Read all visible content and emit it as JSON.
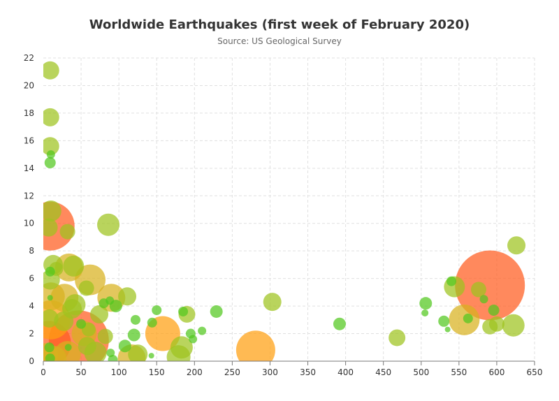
{
  "chart_data": {
    "type": "scatter",
    "title": "Worldwide Earthquakes (first week of February 2020)",
    "subtitle": "Source: US Geological Survey",
    "xlabel": "",
    "ylabel": "",
    "xlim": [
      0,
      650
    ],
    "ylim": [
      0,
      22
    ],
    "x_ticks": [
      0,
      50,
      100,
      150,
      200,
      250,
      300,
      350,
      400,
      450,
      500,
      550,
      600,
      650
    ],
    "y_ticks": [
      0,
      2,
      4,
      6,
      8,
      10,
      12,
      14,
      16,
      18,
      20,
      22
    ],
    "grid": "dashed, both axes",
    "colors": {
      "small": "#52c81e",
      "medium": "#9ec41e",
      "large": "#d8b21e",
      "xlarge": "#ffa011",
      "huge": "#ff5b1e"
    },
    "points": [
      {
        "x": 591,
        "y": 5.5,
        "r": 50,
        "c": "huge"
      },
      {
        "x": 47,
        "y": 1.5,
        "r": 43,
        "c": "huge"
      },
      {
        "x": 9,
        "y": 9.8,
        "r": 35,
        "c": "huge"
      },
      {
        "x": 7,
        "y": 1.3,
        "r": 32,
        "c": "huge"
      },
      {
        "x": 10,
        "y": 3.0,
        "r": 28,
        "c": "xlarge"
      },
      {
        "x": 281,
        "y": 0.8,
        "r": 28,
        "c": "xlarge"
      },
      {
        "x": 158,
        "y": 2.0,
        "r": 25,
        "c": "xlarge"
      },
      {
        "x": 557,
        "y": 3.0,
        "r": 22,
        "c": "large"
      },
      {
        "x": 62,
        "y": 5.9,
        "r": 22,
        "c": "large"
      },
      {
        "x": 28,
        "y": 4.6,
        "r": 20,
        "c": "large"
      },
      {
        "x": 10,
        "y": 4.7,
        "r": 20,
        "c": "large"
      },
      {
        "x": 34,
        "y": 6.8,
        "r": 20,
        "c": "large"
      },
      {
        "x": 117,
        "y": 0.2,
        "r": 20,
        "c": "large"
      },
      {
        "x": 90,
        "y": 4.6,
        "r": 20,
        "c": "large"
      },
      {
        "x": 32,
        "y": 0.5,
        "r": 19,
        "c": "large"
      },
      {
        "x": 54,
        "y": 2.0,
        "r": 18,
        "c": "large"
      },
      {
        "x": 3,
        "y": 0.4,
        "r": 18,
        "c": "large"
      },
      {
        "x": 14,
        "y": 0.2,
        "r": 18,
        "c": "large"
      },
      {
        "x": 179,
        "y": 0.3,
        "r": 17,
        "c": "medium"
      },
      {
        "x": 183,
        "y": 1.0,
        "r": 16,
        "c": "medium"
      },
      {
        "x": 69,
        "y": 0.6,
        "r": 16,
        "c": "medium"
      },
      {
        "x": 10,
        "y": 10.9,
        "r": 15,
        "c": "medium"
      },
      {
        "x": 86,
        "y": 9.9,
        "r": 16,
        "c": "medium"
      },
      {
        "x": 40,
        "y": 6.9,
        "r": 15,
        "c": "medium"
      },
      {
        "x": 42,
        "y": 4.1,
        "r": 15,
        "c": "medium"
      },
      {
        "x": 13,
        "y": 7.0,
        "r": 14,
        "c": "medium"
      },
      {
        "x": 9,
        "y": 5.9,
        "r": 14,
        "c": "medium"
      },
      {
        "x": 8,
        "y": 3.1,
        "r": 13,
        "c": "medium"
      },
      {
        "x": 622,
        "y": 2.6,
        "r": 16,
        "c": "medium"
      },
      {
        "x": 544,
        "y": 5.4,
        "r": 15,
        "c": "medium"
      },
      {
        "x": 27,
        "y": 2.9,
        "r": 14,
        "c": "medium"
      },
      {
        "x": 74,
        "y": 3.4,
        "r": 13,
        "c": "medium"
      },
      {
        "x": 38,
        "y": 3.8,
        "r": 14,
        "c": "medium"
      },
      {
        "x": 125,
        "y": 0.5,
        "r": 14,
        "c": "medium"
      },
      {
        "x": 58,
        "y": 1.1,
        "r": 13,
        "c": "medium"
      },
      {
        "x": 9,
        "y": 21.1,
        "r": 13,
        "c": "medium"
      },
      {
        "x": 9,
        "y": 17.7,
        "r": 13,
        "c": "medium"
      },
      {
        "x": 9,
        "y": 15.6,
        "r": 13,
        "c": "medium"
      },
      {
        "x": 7,
        "y": 9.7,
        "r": 13,
        "c": "medium"
      },
      {
        "x": 32,
        "y": 9.4,
        "r": 11,
        "c": "medium"
      },
      {
        "x": 111,
        "y": 4.7,
        "r": 13,
        "c": "medium"
      },
      {
        "x": 303,
        "y": 4.3,
        "r": 13,
        "c": "medium"
      },
      {
        "x": 626,
        "y": 8.4,
        "r": 13,
        "c": "medium"
      },
      {
        "x": 190,
        "y": 3.4,
        "r": 12,
        "c": "medium"
      },
      {
        "x": 468,
        "y": 1.7,
        "r": 12,
        "c": "medium"
      },
      {
        "x": 576,
        "y": 5.2,
        "r": 11,
        "c": "medium"
      },
      {
        "x": 600,
        "y": 2.7,
        "r": 11,
        "c": "medium"
      },
      {
        "x": 591,
        "y": 2.5,
        "r": 11,
        "c": "medium"
      },
      {
        "x": 57,
        "y": 5.3,
        "r": 11,
        "c": "medium"
      },
      {
        "x": 82,
        "y": 1.8,
        "r": 11,
        "c": "medium"
      },
      {
        "x": 17,
        "y": 6.7,
        "r": 10,
        "c": "medium"
      },
      {
        "x": 60,
        "y": 2.3,
        "r": 10,
        "c": "medium"
      },
      {
        "x": 229,
        "y": 3.6,
        "r": 9,
        "c": "small"
      },
      {
        "x": 392,
        "y": 2.7,
        "r": 9,
        "c": "small"
      },
      {
        "x": 506,
        "y": 4.2,
        "r": 9,
        "c": "small"
      },
      {
        "x": 530,
        "y": 2.9,
        "r": 8,
        "c": "small"
      },
      {
        "x": 596,
        "y": 3.7,
        "r": 8,
        "c": "small"
      },
      {
        "x": 540,
        "y": 5.8,
        "r": 7,
        "c": "small"
      },
      {
        "x": 562,
        "y": 3.1,
        "r": 7,
        "c": "small"
      },
      {
        "x": 108,
        "y": 1.1,
        "r": 9,
        "c": "small"
      },
      {
        "x": 120,
        "y": 1.9,
        "r": 9,
        "c": "small"
      },
      {
        "x": 96,
        "y": 4.0,
        "r": 9,
        "c": "small"
      },
      {
        "x": 9,
        "y": 14.4,
        "r": 8,
        "c": "small"
      },
      {
        "x": 10,
        "y": 15.0,
        "r": 6,
        "c": "small"
      },
      {
        "x": 9,
        "y": 6.5,
        "r": 7,
        "c": "small"
      },
      {
        "x": 8,
        "y": 1.0,
        "r": 7,
        "c": "small"
      },
      {
        "x": 9,
        "y": 0.2,
        "r": 7,
        "c": "small"
      },
      {
        "x": 150,
        "y": 3.7,
        "r": 7,
        "c": "small"
      },
      {
        "x": 185,
        "y": 3.6,
        "r": 7,
        "c": "small"
      },
      {
        "x": 195,
        "y": 2.0,
        "r": 7,
        "c": "small"
      },
      {
        "x": 144,
        "y": 2.8,
        "r": 7,
        "c": "small"
      },
      {
        "x": 122,
        "y": 3.0,
        "r": 7,
        "c": "small"
      },
      {
        "x": 92,
        "y": 0.1,
        "r": 7,
        "c": "small"
      },
      {
        "x": 80,
        "y": 4.2,
        "r": 7,
        "c": "small"
      },
      {
        "x": 50,
        "y": 2.7,
        "r": 7,
        "c": "small"
      },
      {
        "x": 210,
        "y": 2.2,
        "r": 6,
        "c": "small"
      },
      {
        "x": 198,
        "y": 1.6,
        "r": 6,
        "c": "small"
      },
      {
        "x": 88,
        "y": 4.4,
        "r": 6,
        "c": "small"
      },
      {
        "x": 89,
        "y": 0.6,
        "r": 6,
        "c": "small"
      },
      {
        "x": 505,
        "y": 3.5,
        "r": 5,
        "c": "small"
      },
      {
        "x": 583,
        "y": 4.5,
        "r": 6,
        "c": "small"
      },
      {
        "x": 33,
        "y": 1.0,
        "r": 5,
        "c": "small"
      },
      {
        "x": 143,
        "y": 0.4,
        "r": 4,
        "c": "small"
      },
      {
        "x": 535,
        "y": 2.3,
        "r": 4,
        "c": "small"
      },
      {
        "x": 9,
        "y": 4.6,
        "r": 4,
        "c": "small"
      }
    ]
  }
}
